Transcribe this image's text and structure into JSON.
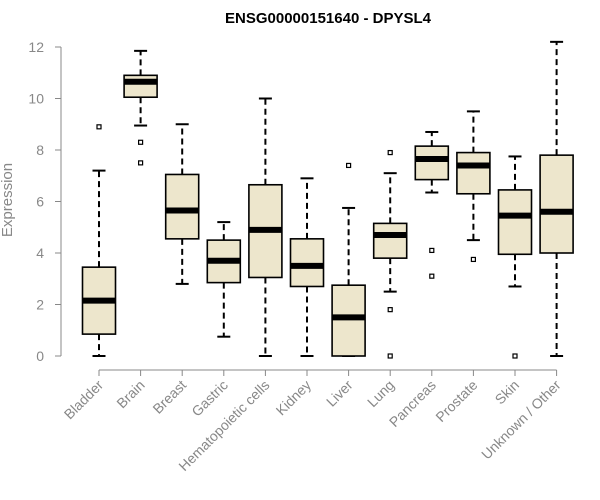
{
  "chart_data": {
    "type": "boxplot",
    "title": "ENSG00000151640 - DPYSL4",
    "xlabel": "",
    "ylabel": "Expression",
    "ylim": [
      0,
      12
    ],
    "yticks": [
      0,
      2,
      4,
      6,
      8,
      10,
      12
    ],
    "box_color": "#ede6cc",
    "categories": [
      "Bladder",
      "Brain",
      "Breast",
      "Gastric",
      "Hematopoietic cells",
      "Kidney",
      "Liver",
      "Lung",
      "Pancreas",
      "Prostate",
      "Skin",
      "Unknown / Other"
    ],
    "boxes": [
      {
        "min": 0.0,
        "q1": 0.85,
        "median": 2.15,
        "q3": 3.45,
        "max": 7.2,
        "outliers": [
          8.9
        ]
      },
      {
        "min": 8.95,
        "q1": 10.05,
        "median": 10.65,
        "q3": 10.9,
        "max": 11.85,
        "outliers": [
          8.3,
          7.5
        ]
      },
      {
        "min": 2.8,
        "q1": 4.55,
        "median": 5.65,
        "q3": 7.05,
        "max": 9.0,
        "outliers": []
      },
      {
        "min": 0.75,
        "q1": 2.85,
        "median": 3.7,
        "q3": 4.5,
        "max": 5.2,
        "outliers": []
      },
      {
        "min": 0.0,
        "q1": 3.05,
        "median": 4.9,
        "q3": 6.65,
        "max": 10.0,
        "outliers": []
      },
      {
        "min": 0.0,
        "q1": 2.7,
        "median": 3.5,
        "q3": 4.55,
        "max": 6.9,
        "outliers": []
      },
      {
        "min": 0.0,
        "q1": 0.0,
        "median": 1.5,
        "q3": 2.75,
        "max": 5.75,
        "outliers": [
          7.4
        ]
      },
      {
        "min": 2.5,
        "q1": 3.8,
        "median": 4.7,
        "q3": 5.15,
        "max": 7.1,
        "outliers": [
          7.9,
          1.8,
          0.0
        ]
      },
      {
        "min": 6.35,
        "q1": 6.85,
        "median": 7.65,
        "q3": 8.15,
        "max": 8.7,
        "outliers": [
          4.1,
          3.1
        ]
      },
      {
        "min": 4.5,
        "q1": 6.3,
        "median": 7.4,
        "q3": 7.9,
        "max": 9.5,
        "outliers": [
          3.75
        ]
      },
      {
        "min": 2.7,
        "q1": 3.95,
        "median": 5.45,
        "q3": 6.45,
        "max": 7.75,
        "outliers": [
          0.0
        ]
      },
      {
        "min": 0.0,
        "q1": 4.0,
        "median": 5.6,
        "q3": 7.8,
        "max": 12.2,
        "outliers": []
      }
    ]
  }
}
